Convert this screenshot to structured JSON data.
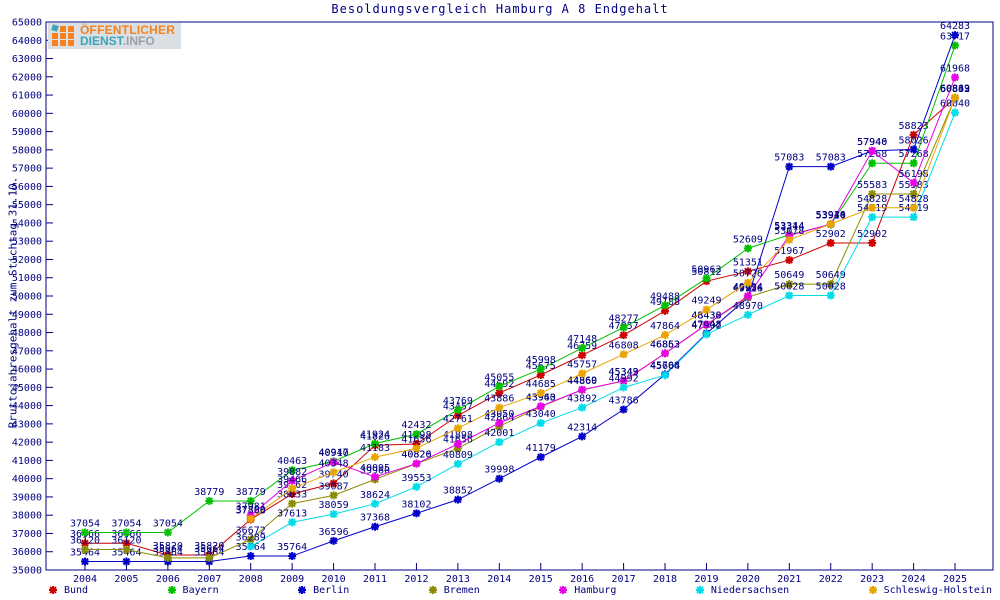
{
  "title": "Besoldungsvergleich Hamburg A 8 Endgehalt",
  "logo": {
    "line1": "ÖFFENTLICHER",
    "dienst": "DIENST",
    "info": ".INFO"
  },
  "chart_data": {
    "type": "line",
    "title": "Besoldungsvergleich Hamburg A 8 Endgehalt",
    "xlabel": "",
    "ylabel": "Bruttojahresgehalt zum Stichtag 31.10.",
    "x": [
      2004,
      2005,
      2006,
      2007,
      2008,
      2009,
      2010,
      2011,
      2012,
      2013,
      2014,
      2015,
      2016,
      2017,
      2018,
      2019,
      2020,
      2021,
      2022,
      2023,
      2024,
      2025
    ],
    "ylim": [
      35000,
      65000
    ],
    "ytick_step": 1000,
    "grid": false,
    "legend_position": "bottom",
    "axis_color": "#000080",
    "label_color": "#000080",
    "point_labels": true,
    "series": [
      {
        "name": "Bund",
        "color": "#cc0000",
        "values": [
          36466,
          36466,
          35820,
          35820,
          37768,
          39162,
          39740,
          41826,
          41898,
          43457,
          44692,
          45675,
          46759,
          47857,
          49188,
          50812,
          51351,
          51967,
          52902,
          52902,
          58823,
          60842
        ]
      },
      {
        "name": "Bayern",
        "color": "#00c000",
        "values": [
          37054,
          37054,
          37054,
          38779,
          38779,
          40463,
          40947,
          41924,
          42432,
          43769,
          45055,
          45998,
          47148,
          48277,
          49488,
          50963,
          52609,
          53344,
          53916,
          57268,
          57268,
          63717
        ]
      },
      {
        "name": "Berlin",
        "color": "#0000c8",
        "values": [
          35464,
          35464,
          35464,
          35464,
          35764,
          35764,
          36596,
          37368,
          38102,
          38852,
          39998,
          41179,
          42314,
          43786,
          45708,
          47948,
          49916,
          57083,
          57083,
          57946,
          58026,
          64283
        ]
      },
      {
        "name": "Bremen",
        "color": "#8c8c00",
        "values": [
          36120,
          36120,
          35664,
          35664,
          36672,
          38633,
          39087,
          39960,
          40820,
          41656,
          42864,
          43940,
          44860,
          45343,
          46852,
          48430,
          49934,
          50649,
          50649,
          55583,
          55583,
          60833
        ]
      },
      {
        "name": "Hamburg",
        "color": "#e800e8",
        "values": [
          null,
          null,
          null,
          null,
          37981,
          39882,
          40910,
          40095,
          40826,
          41898,
          43050,
          43963,
          44869,
          45349,
          46863,
          48438,
          49994,
          53314,
          53934,
          57940,
          56198,
          61968
        ]
      },
      {
        "name": "Niedersachsen",
        "color": "#00dde8",
        "values": [
          null,
          null,
          null,
          null,
          36289,
          37613,
          38059,
          38624,
          39553,
          40809,
          42001,
          43040,
          43892,
          44992,
          45664,
          47902,
          48970,
          50028,
          50028,
          54319,
          54319,
          60040
        ]
      },
      {
        "name": "Schleswig-Holstein",
        "color": "#e8a400",
        "values": [
          null,
          null,
          null,
          null,
          37800,
          39466,
          40348,
          41183,
          41656,
          42761,
          43886,
          44685,
          45757,
          46808,
          47864,
          49249,
          50728,
          53078,
          53940,
          54828,
          54828,
          60869
        ]
      }
    ]
  }
}
